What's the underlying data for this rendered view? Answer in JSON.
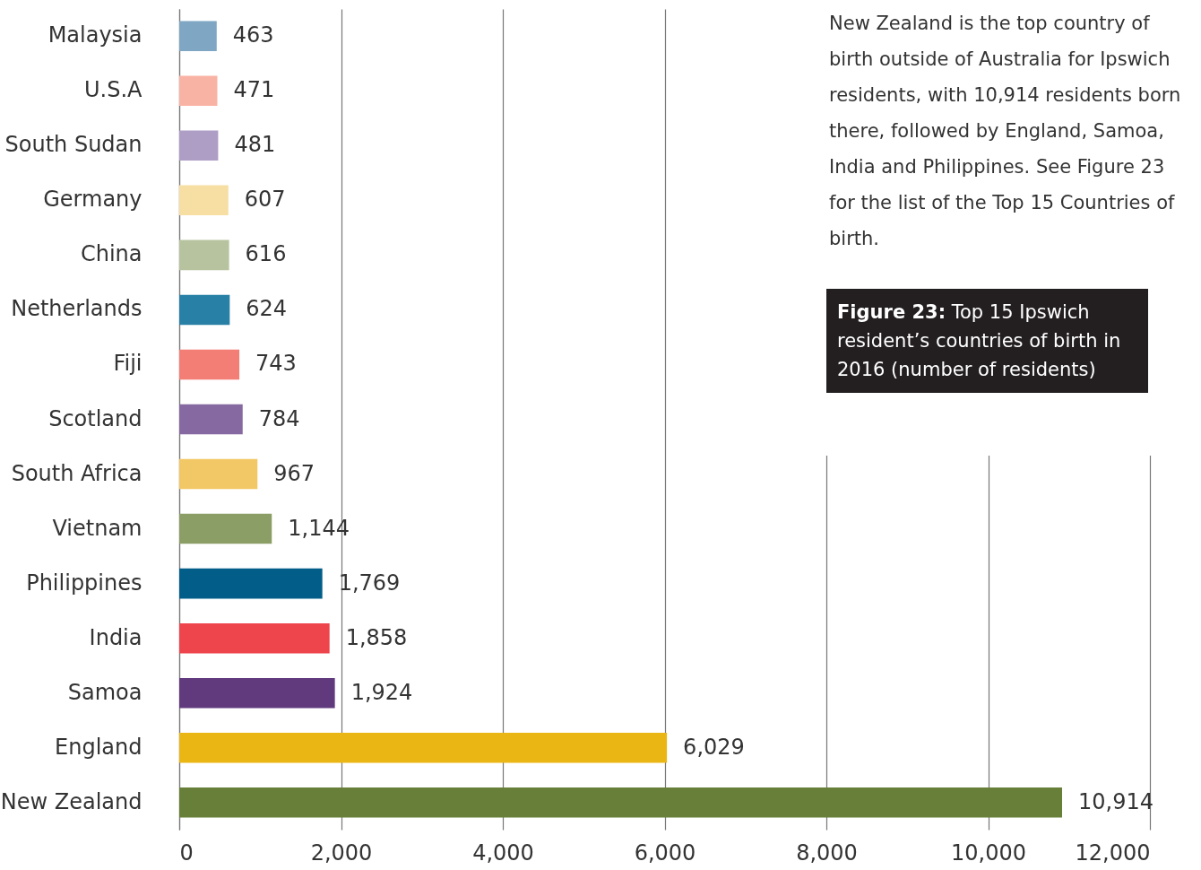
{
  "chart_data": {
    "type": "bar",
    "orientation": "horizontal",
    "title": "Figure 23: Top 15 Ipswich resident’s countries of birth in 2016 (number of residents)",
    "annotations": [
      "New Zealand is the top country of birth outside of Australia for Ipswich residents, with 10,914 residents born there, followed by England, Samoa, India and Philippines. See Figure 23 for the list of the Top 15 Countries of birth."
    ],
    "categories": [
      "Malaysia",
      "U.S.A",
      "South Sudan",
      "Germany",
      "China",
      "Netherlands",
      "Fiji",
      "Scotland",
      "South Africa",
      "Vietnam",
      "Philippines",
      "India",
      "Samoa",
      "England",
      "New Zealand"
    ],
    "values": [
      463,
      471,
      481,
      607,
      616,
      624,
      743,
      784,
      967,
      1144,
      1769,
      1858,
      1924,
      6029,
      10914
    ],
    "colors": [
      "#7fa7c4",
      "#f9b3a5",
      "#ae9ec5",
      "#f7dfa4",
      "#b7c39f",
      "#2880a6",
      "#f37e76",
      "#8669a0",
      "#f2c866",
      "#8b9e65",
      "#025e89",
      "#ee444c",
      "#613a7e",
      "#e9b613",
      "#677f39"
    ],
    "value_labels": [
      "463",
      "471",
      "481",
      "607",
      "616",
      "624",
      "743",
      "784",
      "967",
      "1,144",
      "1,769",
      "1,858",
      "1,924",
      "6,029",
      "10,914"
    ],
    "xlim": [
      0,
      12000
    ],
    "xticks": [
      0,
      {
        "value": 2000,
        "label": "2,000"
      },
      {
        "value": 4000,
        "label": "4,000"
      },
      {
        "value": 6000,
        "label": "6,000"
      },
      {
        "value": 8000,
        "label": "8,000"
      },
      {
        "value": 10000,
        "label": "10,000"
      },
      {
        "value": 12000,
        "label": "12,000"
      }
    ],
    "grid": "x"
  }
}
